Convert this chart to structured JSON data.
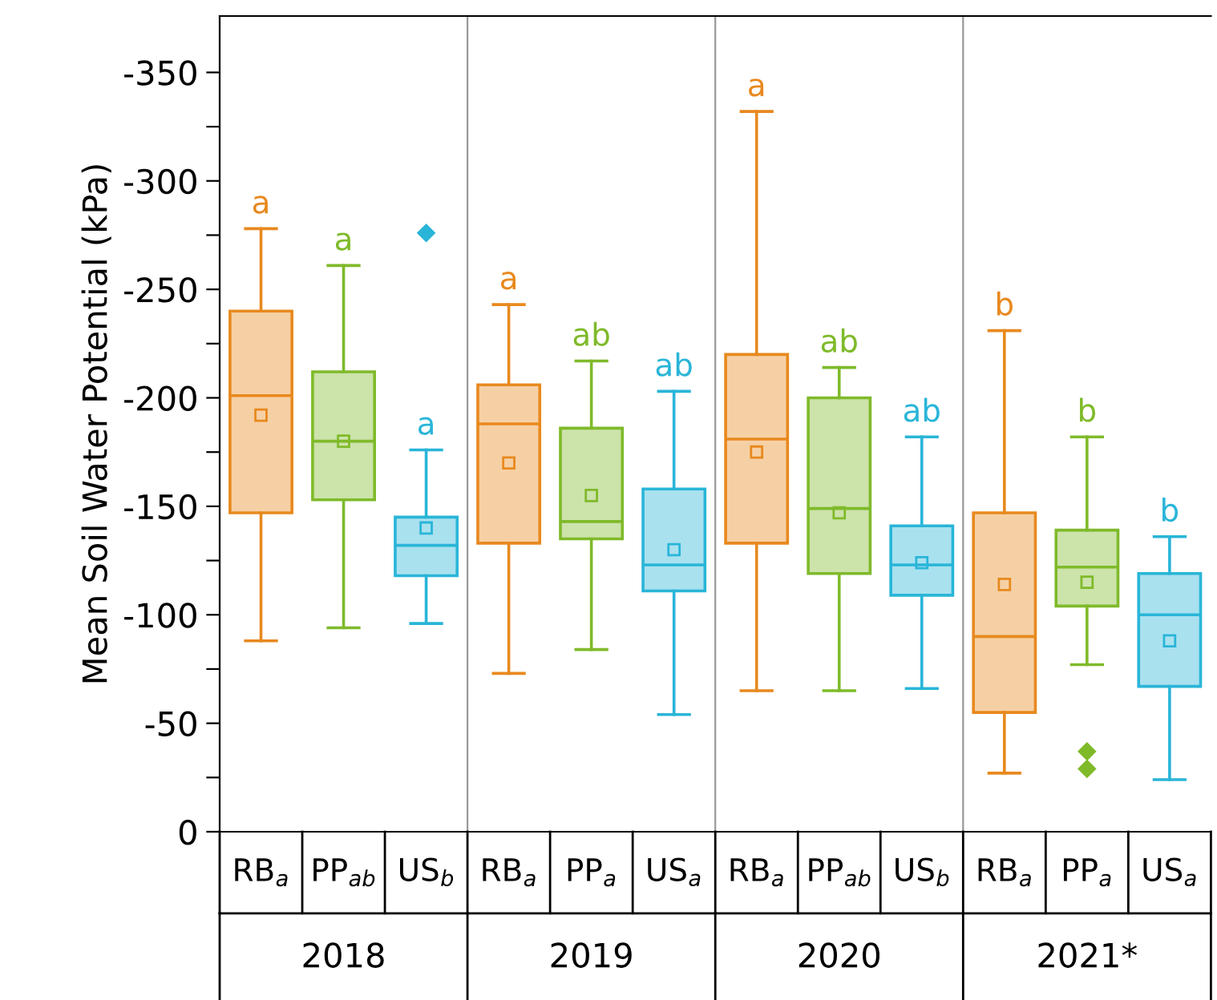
{
  "chart_data": {
    "type": "box",
    "ylabel": "Mean Soil Water Potential (kPa)",
    "categories": [
      "RB$_{a}$",
      "PP$_{ab}$",
      "US$_{b}$",
      "RB$_{a}$",
      "PP$_{a}$",
      "US$_{a}$",
      "RB$_{a}$",
      "PP$_{ab}$",
      "US$_{b}$",
      "RB$_{a}$",
      "PP$_{a}$",
      "US$_{a}$"
    ],
    "boxes": [
      {
        "low": -88,
        "q1": -147,
        "median": -201,
        "q3": -240,
        "high": -278,
        "mean": -192
      },
      {
        "low": -94,
        "q1": -153,
        "median": -180,
        "q3": -212,
        "high": -261,
        "mean": -180
      },
      {
        "low": -96,
        "q1": -118,
        "median": -132,
        "q3": -145,
        "high": -176,
        "mean": -140,
        "outliers": [
          -276
        ]
      },
      {
        "low": -73,
        "q1": -133,
        "median": -188,
        "q3": -206,
        "high": -243,
        "mean": -170
      },
      {
        "low": -84,
        "q1": -135,
        "median": -143,
        "q3": -186,
        "high": -217,
        "mean": -155
      },
      {
        "low": -54,
        "q1": -111,
        "median": -123,
        "q3": -158,
        "high": -203,
        "mean": -130
      },
      {
        "low": -65,
        "q1": -133,
        "median": -181,
        "q3": -220,
        "high": -332,
        "mean": -175
      },
      {
        "low": -65,
        "q1": -119,
        "median": -149,
        "q3": -200,
        "high": -214,
        "mean": -147
      },
      {
        "low": -66,
        "q1": -109,
        "median": -123,
        "q3": -141,
        "high": -182,
        "mean": -124
      },
      {
        "low": -27,
        "q1": -55,
        "median": -90,
        "q3": -147,
        "high": -231,
        "mean": -114
      },
      {
        "low": -77,
        "q1": -104,
        "median": -122,
        "q3": -139,
        "high": -182,
        "mean": -115,
        "outliers": [
          -37,
          -29
        ]
      },
      {
        "low": -24,
        "q1": -67,
        "median": -100,
        "q3": -119,
        "high": -136,
        "mean": -88
      }
    ],
    "colors": [
      "#e8891e",
      "#7fba2a",
      "#29b5d8",
      "#e8891e",
      "#7fba2a",
      "#29b5d8",
      "#e8891e",
      "#7fba2a",
      "#29b5d8",
      "#e8891e",
      "#7fba2a",
      "#29b5d8"
    ],
    "value_labels": [
      "a",
      "a",
      "a",
      "a",
      "ab",
      "ab",
      "a",
      "ab",
      "ab",
      "b",
      "b",
      "b"
    ],
    "annotations": [
      "2018",
      "2019",
      "2020",
      "2021*"
    ],
    "ylim": [
      0,
      -376
    ],
    "yticks": [
      {
        "value": 0,
        "label": "0"
      },
      {
        "value": -25,
        "label": null
      },
      {
        "value": -50,
        "label": "-50"
      },
      {
        "value": -75,
        "label": null
      },
      {
        "value": -100,
        "label": "-100"
      },
      {
        "value": -125,
        "label": null
      },
      {
        "value": -150,
        "label": "-150"
      },
      {
        "value": -175,
        "label": null
      },
      {
        "value": -200,
        "label": "-200"
      },
      {
        "value": -225,
        "label": null
      },
      {
        "value": -250,
        "label": "-250"
      },
      {
        "value": -275,
        "label": null
      },
      {
        "value": -300,
        "label": "-300"
      },
      {
        "value": -325,
        "label": null
      },
      {
        "value": -350,
        "label": "-350"
      }
    ],
    "grid": false
  }
}
